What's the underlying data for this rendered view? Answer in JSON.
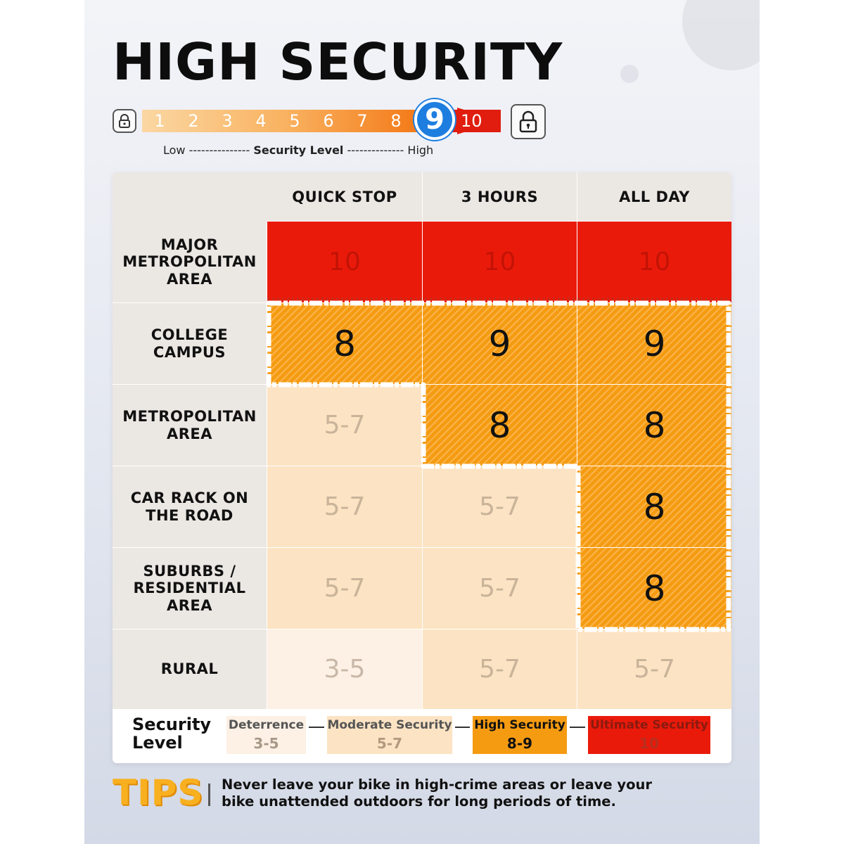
{
  "title": "HIGH SECURITY",
  "scale": {
    "numbers": [
      "1",
      "2",
      "3",
      "4",
      "5",
      "6",
      "7",
      "8"
    ],
    "current": "9",
    "max": "10",
    "low_label": "Low",
    "dashes_left": "---------------",
    "mid_label": "Security Level",
    "dashes_right": "--------------",
    "high_label": "High"
  },
  "table": {
    "columns": [
      "QUICK STOP",
      "3 HOURS",
      "ALL DAY"
    ],
    "rows": [
      {
        "label": "MAJOR METROPOLITAN AREA",
        "values": [
          "10",
          "10",
          "10"
        ],
        "levels": [
          "ult",
          "ult",
          "ult"
        ]
      },
      {
        "label": "COLLEGE CAMPUS",
        "values": [
          "8",
          "9",
          "9"
        ],
        "levels": [
          "high",
          "high",
          "high"
        ]
      },
      {
        "label": "METROPOLITAN AREA",
        "values": [
          "5-7",
          "8",
          "8"
        ],
        "levels": [
          "mod",
          "high",
          "high"
        ]
      },
      {
        "label": "CAR RACK ON THE ROAD",
        "values": [
          "5-7",
          "5-7",
          "8"
        ],
        "levels": [
          "mod",
          "mod",
          "high"
        ]
      },
      {
        "label": "SUBURBS / RESIDENTIAL AREA",
        "values": [
          "5-7",
          "5-7",
          "8"
        ],
        "levels": [
          "mod",
          "mod",
          "high"
        ]
      },
      {
        "label": "RURAL",
        "values": [
          "3-5",
          "5-7",
          "5-7"
        ],
        "levels": [
          "det",
          "mod",
          "mod"
        ]
      }
    ]
  },
  "legend": {
    "title": "Security Level",
    "items": [
      {
        "name": "Deterrence",
        "range": "3-5",
        "color": "#fdf0e4"
      },
      {
        "name": "Moderate Security",
        "range": "5-7",
        "color": "#fce3c3"
      },
      {
        "name": "High Security",
        "range": "8-9",
        "color": "#f59b12"
      },
      {
        "name": "Ultimate Security",
        "range": "10",
        "color": "#ea1a0a"
      }
    ]
  },
  "tips": {
    "label": "TIPS",
    "text": "Never leave your bike in high-crime areas or leave your bike unattended outdoors for long periods of time."
  },
  "icons": {
    "scale_low": "padlock-icon",
    "scale_high": "padlock-icon"
  }
}
